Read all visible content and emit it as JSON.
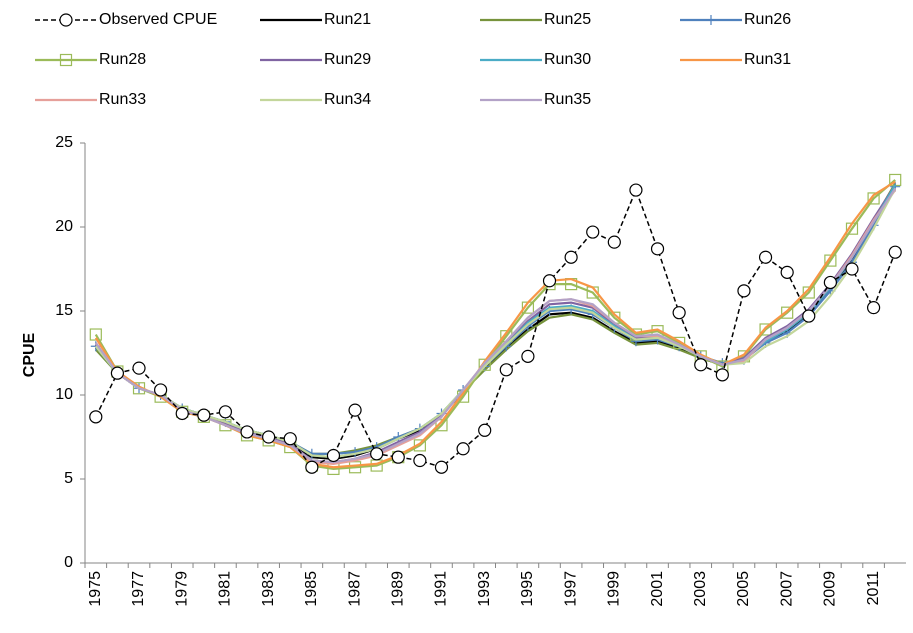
{
  "chart_data": {
    "type": "line",
    "y_label": "CPUE",
    "categories": [
      "1975",
      null,
      "1977",
      null,
      "1979",
      null,
      "1981",
      null,
      "1983",
      null,
      "1985",
      null,
      "1987",
      null,
      "1989",
      null,
      "1991",
      null,
      "1993",
      null,
      "1995",
      null,
      "1997",
      null,
      "1999",
      null,
      "2001",
      null,
      "2003",
      null,
      "2005",
      null,
      "2007",
      null,
      "2009",
      null,
      "2011",
      null
    ],
    "ylim": [
      0,
      25
    ],
    "yticks": [
      0,
      5,
      10,
      15,
      20,
      25
    ],
    "series": [
      {
        "name": "Observed CPUE",
        "color": "#000000",
        "dash": true,
        "marker": "circle",
        "values": [
          8.7,
          11.3,
          11.6,
          10.3,
          8.9,
          8.8,
          9.0,
          7.8,
          7.5,
          7.4,
          5.7,
          6.4,
          9.1,
          6.5,
          6.3,
          6.1,
          5.7,
          6.8,
          7.9,
          11.5,
          12.3,
          16.8,
          18.2,
          19.7,
          19.1,
          22.2,
          18.7,
          14.9,
          11.8,
          11.2,
          16.2,
          18.2,
          17.3,
          14.7,
          16.7,
          17.5,
          15.2,
          18.5
        ]
      },
      {
        "name": "Run21",
        "color": "#000000",
        "values": [
          12.8,
          11.3,
          10.4,
          10.0,
          9.2,
          8.8,
          8.3,
          7.8,
          7.5,
          7.1,
          6.3,
          6.2,
          6.4,
          6.8,
          7.4,
          7.9,
          8.8,
          10.2,
          11.6,
          12.8,
          13.9,
          14.8,
          14.9,
          14.6,
          13.8,
          13.1,
          13.2,
          12.8,
          12.2,
          11.8,
          12.2,
          13.2,
          13.8,
          14.8,
          16.3,
          18.0,
          20.2,
          22.5
        ]
      },
      {
        "name": "Run25",
        "color": "#77933c",
        "values": [
          12.7,
          11.3,
          10.4,
          10.0,
          9.2,
          8.8,
          8.4,
          7.9,
          7.6,
          7.2,
          6.5,
          6.5,
          6.7,
          7.0,
          7.5,
          8.0,
          8.9,
          10.2,
          11.5,
          12.7,
          13.8,
          14.6,
          14.8,
          14.5,
          13.7,
          13.0,
          13.1,
          12.7,
          12.2,
          11.8,
          12.2,
          13.2,
          13.9,
          14.9,
          16.4,
          18.2,
          20.4,
          22.6
        ]
      },
      {
        "name": "Run26",
        "color": "#4f81bd",
        "marker": "plus",
        "values": [
          12.9,
          11.3,
          10.4,
          10.0,
          9.2,
          8.8,
          8.4,
          7.9,
          7.6,
          7.2,
          6.5,
          6.5,
          6.6,
          6.9,
          7.5,
          8.0,
          8.9,
          10.3,
          11.7,
          12.9,
          14.1,
          15.0,
          15.1,
          14.8,
          14.0,
          13.2,
          13.3,
          12.9,
          12.3,
          11.9,
          12.1,
          13.1,
          13.7,
          14.7,
          16.2,
          17.9,
          20.1,
          22.4
        ]
      },
      {
        "name": "Run28",
        "color": "#9bbb59",
        "marker": "square",
        "values": [
          13.6,
          11.4,
          10.4,
          9.9,
          9.0,
          8.7,
          8.2,
          7.6,
          7.3,
          6.9,
          5.8,
          5.6,
          5.7,
          5.8,
          6.3,
          7.0,
          8.2,
          9.9,
          11.8,
          13.5,
          15.2,
          16.6,
          16.6,
          16.1,
          14.6,
          13.6,
          13.8,
          13.1,
          12.3,
          11.7,
          12.3,
          13.9,
          14.9,
          16.1,
          18.0,
          19.9,
          21.7,
          22.8
        ]
      },
      {
        "name": "Run29",
        "color": "#8064a2",
        "values": [
          13.0,
          11.3,
          10.4,
          10.0,
          9.1,
          8.8,
          8.3,
          7.8,
          7.5,
          7.1,
          6.1,
          6.0,
          6.2,
          6.6,
          7.2,
          7.8,
          8.8,
          10.3,
          11.8,
          13.1,
          14.4,
          15.4,
          15.5,
          15.2,
          14.2,
          13.4,
          13.5,
          13.0,
          12.3,
          11.8,
          12.2,
          13.4,
          14.1,
          15.1,
          16.6,
          18.4,
          20.5,
          22.5
        ]
      },
      {
        "name": "Run30",
        "color": "#4bacc6",
        "values": [
          12.9,
          11.3,
          10.4,
          10.0,
          9.2,
          8.8,
          8.4,
          7.9,
          7.6,
          7.2,
          6.4,
          6.3,
          6.5,
          6.8,
          7.4,
          8.0,
          8.9,
          10.3,
          11.8,
          13.0,
          14.3,
          15.2,
          15.3,
          15.0,
          14.1,
          13.3,
          13.4,
          12.9,
          12.3,
          11.8,
          12.1,
          13.2,
          13.9,
          14.9,
          16.4,
          18.2,
          20.3,
          22.5
        ]
      },
      {
        "name": "Run31",
        "color": "#f79646",
        "values": [
          13.4,
          11.4,
          10.5,
          9.9,
          9.0,
          8.7,
          8.2,
          7.6,
          7.3,
          6.9,
          5.9,
          5.7,
          5.8,
          5.9,
          6.4,
          7.1,
          8.4,
          10.1,
          12.0,
          13.7,
          15.5,
          16.8,
          16.9,
          16.4,
          14.8,
          13.7,
          13.9,
          13.2,
          12.4,
          11.8,
          12.4,
          14.0,
          15.0,
          16.3,
          18.2,
          20.2,
          21.9,
          22.7
        ]
      },
      {
        "name": "Run33",
        "color": "#e6a09a",
        "values": [
          13.1,
          11.3,
          10.4,
          10.0,
          9.1,
          8.7,
          8.2,
          7.7,
          7.4,
          7.0,
          6.0,
          5.9,
          6.1,
          6.4,
          7.0,
          7.6,
          8.7,
          10.3,
          11.9,
          13.2,
          14.6,
          15.6,
          15.7,
          15.3,
          14.3,
          13.5,
          13.5,
          13.0,
          12.3,
          11.8,
          12.0,
          13.3,
          14.0,
          15.0,
          16.5,
          18.3,
          20.4,
          22.2
        ]
      },
      {
        "name": "Run34",
        "color": "#c3d69b",
        "values": [
          12.9,
          11.3,
          10.4,
          10.0,
          9.2,
          8.8,
          8.4,
          7.9,
          7.6,
          7.2,
          6.4,
          6.3,
          6.5,
          6.8,
          7.4,
          8.0,
          8.9,
          10.3,
          11.7,
          13.0,
          14.2,
          15.1,
          15.2,
          14.9,
          14.0,
          13.3,
          13.4,
          12.9,
          12.3,
          11.8,
          11.9,
          12.9,
          13.5,
          14.4,
          15.9,
          17.7,
          19.9,
          22.3
        ]
      },
      {
        "name": "Run35",
        "color": "#b3a2c7",
        "values": [
          13.1,
          11.3,
          10.4,
          10.0,
          9.1,
          8.7,
          8.2,
          7.7,
          7.4,
          7.0,
          6.1,
          6.0,
          6.2,
          6.5,
          7.1,
          7.7,
          8.7,
          10.3,
          11.9,
          13.2,
          14.6,
          15.6,
          15.7,
          15.4,
          14.3,
          13.5,
          13.6,
          13.0,
          12.3,
          11.8,
          12.1,
          13.3,
          14.0,
          15.0,
          16.5,
          18.2,
          20.3,
          22.3
        ]
      }
    ]
  }
}
